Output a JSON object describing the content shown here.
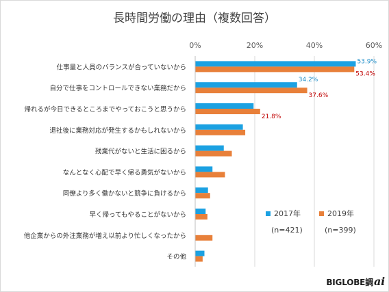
{
  "chart_data": {
    "type": "bar",
    "orientation": "horizontal",
    "title": "長時間労働の理由（複数回答）",
    "xlim": [
      0,
      60
    ],
    "x_ticks": [
      "0%",
      "20%",
      "40%",
      "60%"
    ],
    "x_tick_values": [
      0,
      20,
      40,
      60
    ],
    "grid": true,
    "legend_position": "bottom-right",
    "categories": [
      "仕事量と人員のバランスが合っていないから",
      "自分で仕事をコントロールできない業務だから",
      "帰れるが今日できるところまでやっておこうと思うから",
      "退社後に業務対応が発生するかもしれないから",
      "残業代がないと生活に困るから",
      "なんとなく心配で早く帰る勇気がないから",
      "同僚より多く働かないと競争に負けるから",
      "早く帰ってもやることがないから",
      "他企業からの外注業務が増え以前より忙しくなったから",
      "その他"
    ],
    "series": [
      {
        "name": "2017年",
        "n_label": "(n=421)",
        "color": "#1ba1e2",
        "values": [
          53.9,
          34.2,
          19.6,
          16.0,
          9.6,
          5.8,
          4.3,
          3.5,
          null,
          3.1
        ],
        "data_labels": [
          "53.9%",
          "34.2%",
          null,
          null,
          null,
          null,
          null,
          null,
          null,
          null
        ]
      },
      {
        "name": "2019年",
        "n_label": "(n=399)",
        "color": "#e8803a",
        "values": [
          53.4,
          37.6,
          21.8,
          16.8,
          12.3,
          10.0,
          5.0,
          4.1,
          5.8,
          2.5
        ],
        "data_labels": [
          "53.4%",
          "37.6%",
          "21.8%",
          null,
          null,
          null,
          null,
          null,
          null,
          null
        ]
      }
    ]
  },
  "brand": {
    "text": "BIGLOBE調",
    "mark": "ai"
  }
}
